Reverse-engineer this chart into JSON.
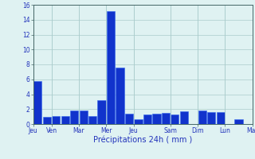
{
  "values": [
    5.8,
    1.0,
    1.1,
    1.1,
    1.8,
    1.8,
    1.1,
    3.2,
    15.2,
    7.6,
    1.4,
    0.6,
    1.3,
    1.4,
    1.5,
    1.3,
    1.7,
    0.0,
    1.8,
    1.6,
    1.6,
    0.0,
    0.6
  ],
  "day_labels": [
    "Jeu",
    "Ven",
    "Mar",
    "Mer",
    "Jeu",
    "Sam",
    "Dim",
    "Lun",
    "Mar"
  ],
  "day_tick_positions": [
    0,
    2,
    5,
    8,
    11,
    15,
    18,
    21,
    24
  ],
  "xlabel": "Précipitations 24h ( mm )",
  "ylim": [
    0,
    16
  ],
  "yticks": [
    0,
    2,
    4,
    6,
    8,
    10,
    12,
    14,
    16
  ],
  "bar_color": "#1133cc",
  "bar_edge_color": "#3366ee",
  "background_color": "#dff2f2",
  "grid_color": "#aacccc",
  "tick_color": "#2233bb",
  "label_color": "#2233bb",
  "figwidth": 3.2,
  "figheight": 2.0,
  "dpi": 100
}
